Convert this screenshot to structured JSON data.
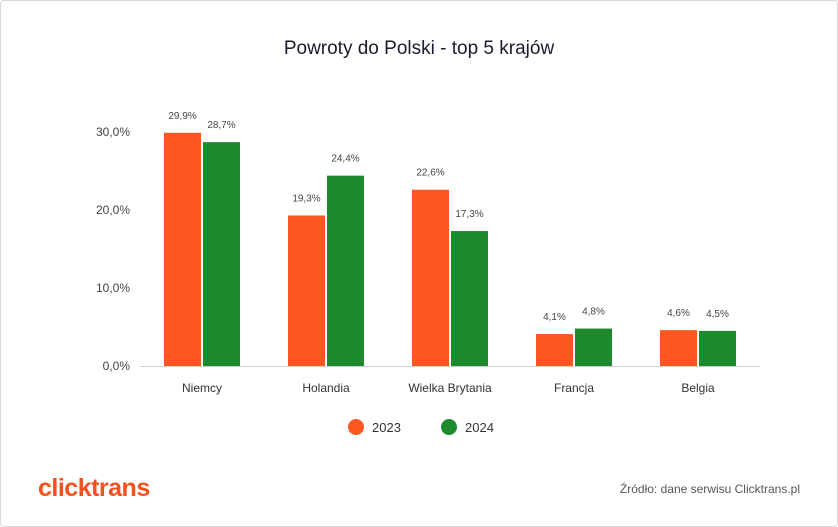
{
  "chart_data": {
    "type": "bar",
    "title": "Powroty do Polski - top 5 krajów",
    "categories": [
      "Niemcy",
      "Holandia",
      "Wielka Brytania",
      "Francja",
      "Belgia"
    ],
    "series": [
      {
        "name": "2023",
        "values": [
          29.9,
          19.3,
          22.6,
          4.1,
          4.6
        ],
        "labels": [
          "29,9%",
          "19,3%",
          "22,6%",
          "4,1%",
          "4,6%"
        ],
        "color": "#ff5722"
      },
      {
        "name": "2024",
        "values": [
          28.7,
          24.4,
          17.3,
          4.8,
          4.5
        ],
        "labels": [
          "28,7%",
          "24,4%",
          "17,3%",
          "4,8%",
          "4,5%"
        ],
        "color": "#1e8a2e"
      }
    ],
    "yticks": [
      "0,0%",
      "10,0%",
      "20,0%",
      "30,0%"
    ],
    "ylim": [
      0,
      30
    ],
    "grid": false,
    "legend": "bottom"
  },
  "logo_text": "clicktrans",
  "source_text": "Źródło: dane serwisu Clicktrans.pl"
}
